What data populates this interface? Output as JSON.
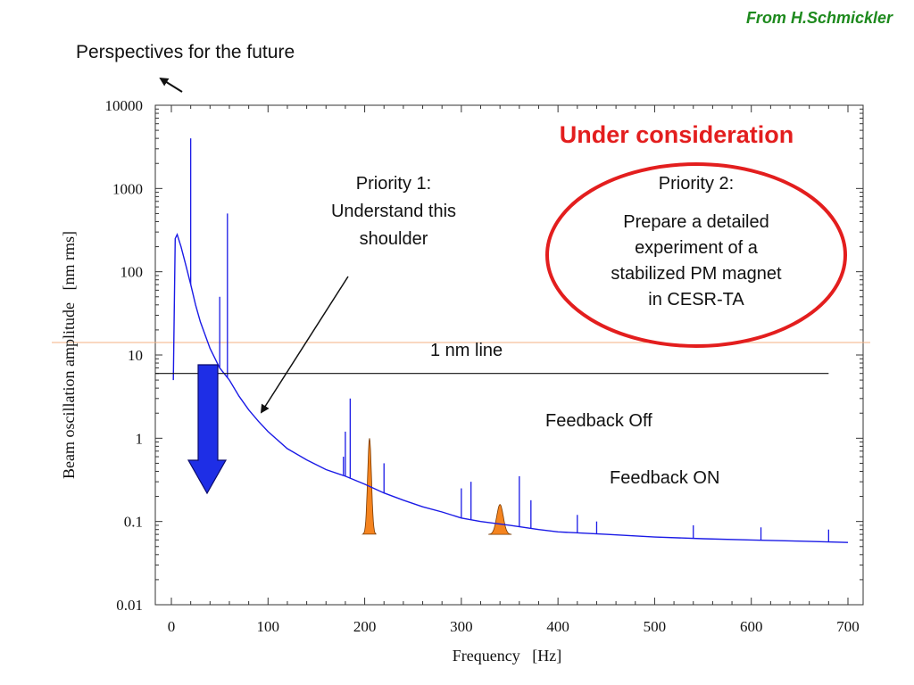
{
  "credit": "From H.Schmickler",
  "perspectives_label": "Perspectives for the future",
  "chart_data": {
    "type": "line",
    "xlabel": "Frequency   [Hz]",
    "ylabel": "Beam oscillation amplitude   [nm rms]",
    "xlim": [
      0,
      700
    ],
    "ylim": [
      0.01,
      10000
    ],
    "yscale": "log",
    "xticks": [
      0,
      100,
      200,
      300,
      400,
      500,
      600,
      700
    ],
    "yticks": [
      {
        "value": 0.01,
        "label": "0.01"
      },
      {
        "value": 0.1,
        "label": "0.1"
      },
      {
        "value": 1,
        "label": "1"
      },
      {
        "value": 10,
        "label": "10"
      },
      {
        "value": 100,
        "label": "100"
      },
      {
        "value": 1000,
        "label": "1000"
      },
      {
        "value": 10000,
        "label": "10000"
      }
    ],
    "grid": false,
    "series": [
      {
        "color": "#1a1ae6",
        "x": [
          2,
          4,
          6,
          10,
          15,
          20,
          25,
          30,
          40,
          50,
          60,
          70,
          80,
          90,
          100,
          120,
          140,
          160,
          180,
          200,
          220,
          240,
          260,
          280,
          300,
          320,
          350,
          380,
          400,
          450,
          500,
          550,
          600,
          650,
          700
        ],
        "y": [
          5,
          250,
          280,
          200,
          120,
          70,
          40,
          25,
          12,
          7,
          5,
          3.2,
          2.2,
          1.6,
          1.2,
          0.75,
          0.55,
          0.42,
          0.35,
          0.28,
          0.22,
          0.18,
          0.15,
          0.13,
          0.11,
          0.1,
          0.09,
          0.08,
          0.075,
          0.07,
          0.065,
          0.062,
          0.06,
          0.058,
          0.056
        ]
      }
    ],
    "spikes": [
      {
        "x": 20,
        "y": 4000
      },
      {
        "x": 58,
        "y": 500
      },
      {
        "x": 50,
        "y": 50
      },
      {
        "x": 180,
        "y": 1.2
      },
      {
        "x": 178,
        "y": 0.6
      },
      {
        "x": 185,
        "y": 3
      },
      {
        "x": 220,
        "y": 0.5
      },
      {
        "x": 300,
        "y": 0.25
      },
      {
        "x": 310,
        "y": 0.3
      },
      {
        "x": 360,
        "y": 0.35
      },
      {
        "x": 372,
        "y": 0.18
      },
      {
        "x": 420,
        "y": 0.12
      },
      {
        "x": 440,
        "y": 0.1
      },
      {
        "x": 540,
        "y": 0.09
      },
      {
        "x": 610,
        "y": 0.085
      },
      {
        "x": 680,
        "y": 0.08
      }
    ],
    "peaks": [
      {
        "center": 205,
        "width": 7,
        "top": 1.0
      },
      {
        "center": 340,
        "width": 12,
        "top": 0.16
      }
    ],
    "reference_line": {
      "y": 6,
      "x_start": 0,
      "x_end": 680,
      "label": "1 nm line"
    },
    "annotations": {
      "priority1": [
        "Priority 1:",
        "Understand this",
        "shoulder"
      ],
      "under_consideration": "Under consideration",
      "priority2_title": "Priority 2:",
      "priority2_body": [
        "Prepare a detailed",
        "experiment of a",
        "stabilized PM magnet",
        "in CESR-TA"
      ],
      "feedback_off": "Feedback Off",
      "feedback_on": "Feedback ON"
    },
    "colors": {
      "signal": "#1a1ae6",
      "peak_fill": "#f5841f",
      "arrow_fill": "#1e2ee6",
      "highlight": "#e31e1e",
      "guide_line": "#f4b183"
    }
  }
}
